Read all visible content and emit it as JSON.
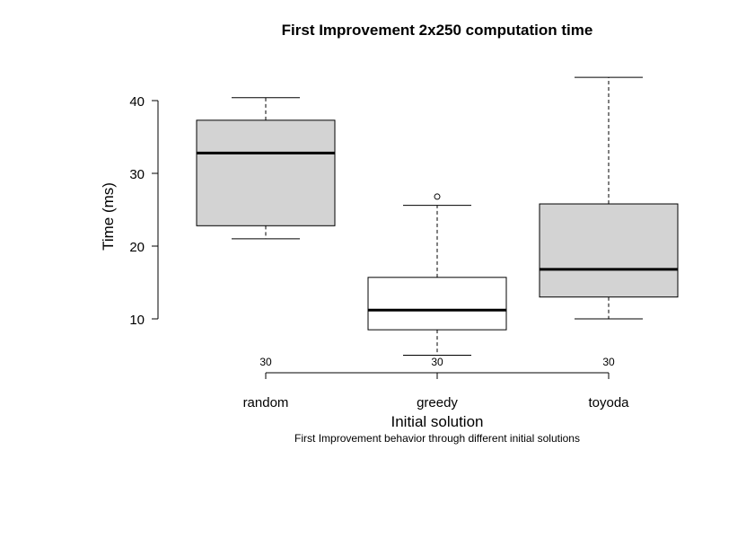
{
  "chart_data": {
    "type": "boxplot",
    "title": "First Improvement 2x250 computation time",
    "subtitle": "First Improvement behavior through different initial solutions",
    "xlabel": "Initial solution",
    "ylabel": "Time (ms)",
    "ylim": [
      8,
      43
    ],
    "yticks": [
      "10",
      "20",
      "30",
      "40"
    ],
    "grid": false,
    "categories": [
      "random",
      "greedy",
      "toyoda"
    ],
    "counts": [
      "30",
      "30",
      "30"
    ],
    "boxes": [
      {
        "label": "random",
        "whisker_low": 21.0,
        "q1": 22.8,
        "median": 32.8,
        "q3": 37.3,
        "whisker_high": 40.4,
        "outliers": [],
        "fill": "#d3d3d3"
      },
      {
        "label": "greedy",
        "whisker_low": 5.0,
        "q1": 8.5,
        "median": 11.2,
        "q3": 15.7,
        "whisker_high": 25.6,
        "outliers": [
          26.8
        ],
        "fill": "#ffffff"
      },
      {
        "label": "toyoda",
        "whisker_low": 10.0,
        "q1": 13.0,
        "median": 16.8,
        "q3": 25.8,
        "whisker_high": 43.2,
        "outliers": [],
        "fill": "#d3d3d3"
      }
    ]
  }
}
